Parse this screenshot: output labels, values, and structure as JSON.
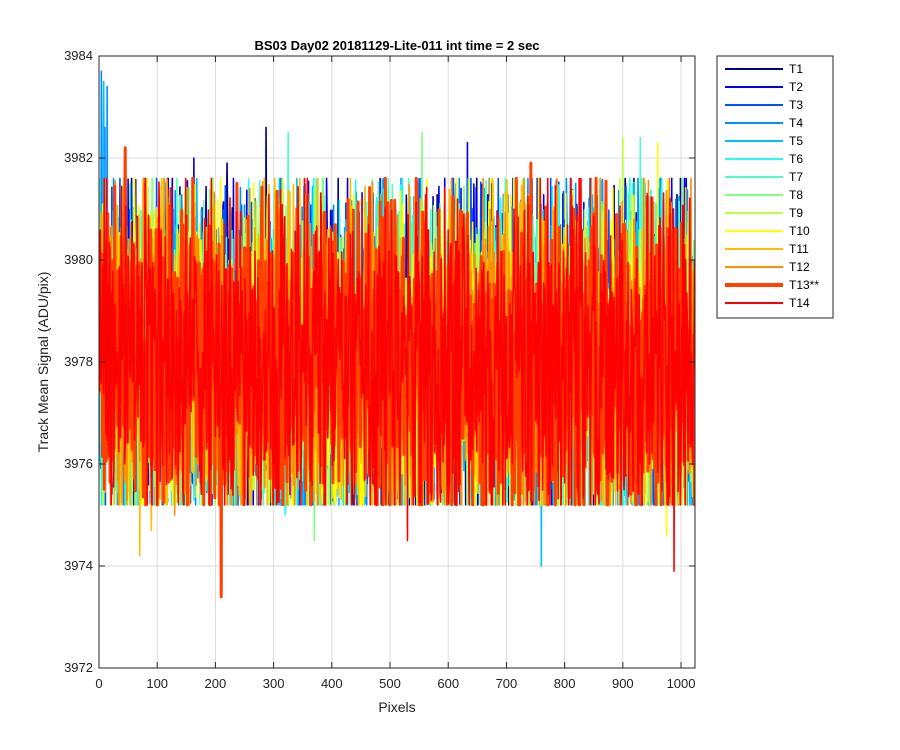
{
  "chart_data": {
    "type": "line",
    "title": "BS03 Day02 20181129-Lite-011 int time = 2 sec",
    "xlabel": "Pixels",
    "ylabel": "Track Mean Signal (ADU/pix)",
    "xlim": [
      0,
      1024
    ],
    "ylim": [
      3972,
      3984
    ],
    "xticks": [
      0,
      100,
      200,
      300,
      400,
      500,
      600,
      700,
      800,
      900,
      1000
    ],
    "yticks": [
      3972,
      3974,
      3976,
      3978,
      3980,
      3982,
      3984
    ],
    "grid": true,
    "legend_position": "outside-top-right",
    "series_baseline": 3978,
    "notes": "Approximate noisy signal for each of 14 tracks across 1024 pixels; values oscillate around ~3978 ADU/pix with typical range 3975-3981.",
    "series": [
      {
        "name": "T1",
        "color": "#00008f",
        "bold": false,
        "spread": 1.6,
        "extremes": [
          [
            287,
            3982.6
          ],
          [
            220,
            3981.9
          ]
        ]
      },
      {
        "name": "T2",
        "color": "#0000ef",
        "bold": false,
        "spread": 1.6,
        "extremes": [
          [
            633,
            3982.3
          ],
          [
            163,
            3982.0
          ]
        ]
      },
      {
        "name": "T3",
        "color": "#0050ff",
        "bold": false,
        "spread": 1.6,
        "extremes": [
          [
            10,
            3982.6
          ]
        ]
      },
      {
        "name": "T4",
        "color": "#0090ff",
        "bold": false,
        "spread": 1.6,
        "extremes": [
          [
            4,
            3983.7
          ],
          [
            14,
            3983.4
          ]
        ]
      },
      {
        "name": "T5",
        "color": "#00c0ff",
        "bold": false,
        "spread": 1.6,
        "extremes": [
          [
            760,
            3974.0
          ],
          [
            8,
            3983.5
          ]
        ]
      },
      {
        "name": "T6",
        "color": "#20ffef",
        "bold": false,
        "spread": 1.5,
        "extremes": [
          [
            320,
            3975.0
          ]
        ]
      },
      {
        "name": "T7",
        "color": "#50ffbf",
        "bold": false,
        "spread": 1.5,
        "extremes": [
          [
            325,
            3982.5
          ],
          [
            930,
            3982.4
          ]
        ]
      },
      {
        "name": "T8",
        "color": "#80ff80",
        "bold": false,
        "spread": 1.5,
        "extremes": [
          [
            555,
            3982.5
          ],
          [
            370,
            3974.5
          ]
        ]
      },
      {
        "name": "T9",
        "color": "#c0ff40",
        "bold": false,
        "spread": 1.5,
        "extremes": [
          [
            900,
            3982.4
          ]
        ]
      },
      {
        "name": "T10",
        "color": "#ffff00",
        "bold": false,
        "spread": 1.5,
        "extremes": [
          [
            960,
            3982.3
          ],
          [
            975,
            3974.6
          ]
        ]
      },
      {
        "name": "T11",
        "color": "#ffbf00",
        "bold": false,
        "spread": 1.6,
        "extremes": [
          [
            70,
            3974.2
          ],
          [
            90,
            3974.7
          ]
        ]
      },
      {
        "name": "T12",
        "color": "#ff8f00",
        "bold": false,
        "spread": 1.5,
        "extremes": [
          [
            130,
            3975.0
          ]
        ]
      },
      {
        "name": "T13**",
        "color": "#ff4000",
        "bold": true,
        "spread": 1.5,
        "extremes": [
          [
            210,
            3973.4
          ],
          [
            0,
            3982.8
          ],
          [
            45,
            3982.2
          ],
          [
            742,
            3981.9
          ]
        ]
      },
      {
        "name": "T14",
        "color": "#ff0000",
        "bold": false,
        "spread": 1.6,
        "extremes": [
          [
            988,
            3973.9
          ],
          [
            530,
            3974.5
          ]
        ]
      }
    ]
  }
}
